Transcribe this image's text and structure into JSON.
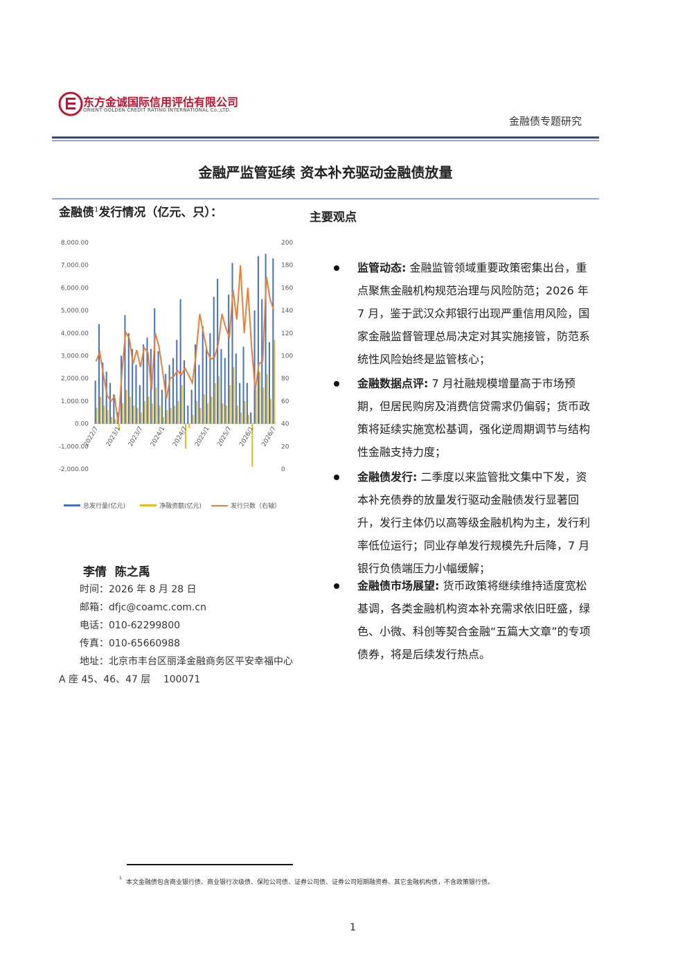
{
  "header": {
    "company_cn": "东方金诚国际信用评估有限公司",
    "company_en": "ORIENT GOLDEN CREDIT RATING INTERNATIONAL Co.,LTD.",
    "report_type": "金融债专题研究"
  },
  "title": "金融严监管延续 资本补充驱动金融债放量",
  "chart_data": {
    "type": "bar",
    "title": "金融债",
    "title_footnote_mark": "1",
    "title_rest": "发行情况（亿元、只）：",
    "categories": [
      "2022/7",
      null,
      null,
      null,
      null,
      null,
      "2023/1",
      null,
      null,
      null,
      null,
      null,
      "2023/7",
      null,
      null,
      null,
      null,
      null,
      "2024/1",
      null,
      null,
      null,
      null,
      null,
      "2024/7",
      null,
      null,
      null,
      null,
      null,
      "2025/1",
      null,
      null,
      null,
      null,
      null,
      "2025/7",
      null,
      null,
      null,
      null,
      null,
      "2026/1",
      null,
      null,
      null,
      null,
      null,
      "2026/7"
    ],
    "series": [
      {
        "name": "总发行量(亿元)",
        "type": "bar",
        "color": "#4472c4",
        "values": [
          1900,
          4400,
          2700,
          2300,
          1800,
          1300,
          500,
          3000,
          4800,
          4000,
          3300,
          2600,
          1700,
          3500,
          3800,
          3300,
          5100,
          3200,
          1500,
          2200,
          2600,
          2900,
          3700,
          5500,
          2800,
          800,
          1500,
          3500,
          2600,
          4300,
          3300,
          4000,
          5600,
          6400,
          3300,
          2900,
          5700,
          7100,
          3100,
          1800,
          3400,
          1800,
          500,
          5000,
          7400,
          5500,
          7500,
          3600,
          7300
        ]
      },
      {
        "name": "净融资额(亿元)",
        "type": "bar",
        "color": "#e8b81c",
        "values": [
          700,
          1200,
          800,
          600,
          300,
          200,
          -300,
          900,
          1500,
          1200,
          800,
          700,
          500,
          1000,
          1200,
          900,
          1600,
          800,
          300,
          600,
          700,
          800,
          1000,
          1700,
          -1100,
          -200,
          400,
          1000,
          700,
          1300,
          900,
          1200,
          1800,
          2100,
          900,
          800,
          1700,
          2500,
          800,
          500,
          1000,
          400,
          -1900,
          1500,
          2300,
          1600,
          2200,
          1100,
          3700
        ]
      },
      {
        "name": "发行只数（右轴）",
        "type": "line",
        "axis": "y2",
        "color": "#ed7d31",
        "values": [
          95,
          103,
          83,
          65,
          60,
          64,
          40,
          86,
          121,
          115,
          93,
          105,
          90,
          107,
          103,
          70,
          120,
          108,
          86,
          62,
          80,
          82,
          87,
          83,
          89,
          83,
          76,
          101,
          137,
          120,
          104,
          97,
          99,
          110,
          137,
          125,
          116,
          158,
          132,
          180,
          120,
          160,
          108,
          70,
          93,
          95,
          170,
          150,
          140
        ]
      }
    ],
    "ylim": [
      -2000,
      8000
    ],
    "yticks": [
      {
        "value": -2000,
        "label": "-2,000.00"
      },
      {
        "value": -1000,
        "label": "-1,000.00"
      },
      {
        "value": 0,
        "label": "0.00"
      },
      {
        "value": 1000,
        "label": "1,000.00"
      },
      {
        "value": 2000,
        "label": "2,000.00"
      },
      {
        "value": 3000,
        "label": "3,000.00"
      },
      {
        "value": 4000,
        "label": "4,000.00"
      },
      {
        "value": 5000,
        "label": "5,000.00"
      },
      {
        "value": 6000,
        "label": "6,000.00"
      },
      {
        "value": 7000,
        "label": "7,000.00"
      },
      {
        "value": 8000,
        "label": "8,000.00"
      }
    ],
    "y2lim": [
      0,
      200
    ],
    "y2ticks": [
      0,
      20,
      40,
      60,
      80,
      100,
      120,
      140,
      160,
      180,
      200
    ],
    "legend": "bottom"
  },
  "key_points": {
    "heading": "主要观点",
    "items": [
      {
        "label": "监管动态:",
        "text": " 金融监管领域重要政策密集出台，重点聚焦金融机构规范治理与风险防范；2026 年 7 月，鉴于武汉众邦银行出现严重信用风险，国家金融监督管理总局决定对其实施接管，防范系统性风险始终是监管核心；"
      },
      {
        "label": "金融数据点评:",
        "text": " 7 月社融规模增量高于市场预期，但居民购房及消费信贷需求仍偏弱；货币政策将延续实施宽松基调，强化逆周期调节与结构性金融支持力度；"
      },
      {
        "label": "金融债发行:",
        "text": " 二季度以来监管批文集中下发，资本补充债券的放量发行驱动金融债发行显著回升，发行主体仍以高等级金融机构为主，发行利率低位运行；同业存单发行规模先升后降，7 月银行负债端压力小幅缓解；"
      },
      {
        "label": "金融债市场展望:",
        "text": " 货币政策将继续维持适度宽松基调，各类金融机构资本补充需求依旧旺盛，绿色、小微、科创等契合金融“五篇大文章”的专项债券，将是后续发行热点。"
      }
    ]
  },
  "authors": "李倩  陈之禹",
  "contacts": [
    "时间：2026 年 8 月 28 日",
    "邮箱：dfjc@coamc.com.cn",
    "电话：010-62299800",
    "传真：010-65660988",
    "地址：北京市丰台区丽泽金融商务区平安幸福中心 A 座 45、46、47 层　 100071"
  ],
  "footnote": {
    "mark": "1",
    "text": "本文金融债包含商业银行债、商业银行次级债、保险公司债、证券公司债、证券公司短期融资券、其它金融机构债，不含政策银行债。"
  },
  "page_number": "1"
}
